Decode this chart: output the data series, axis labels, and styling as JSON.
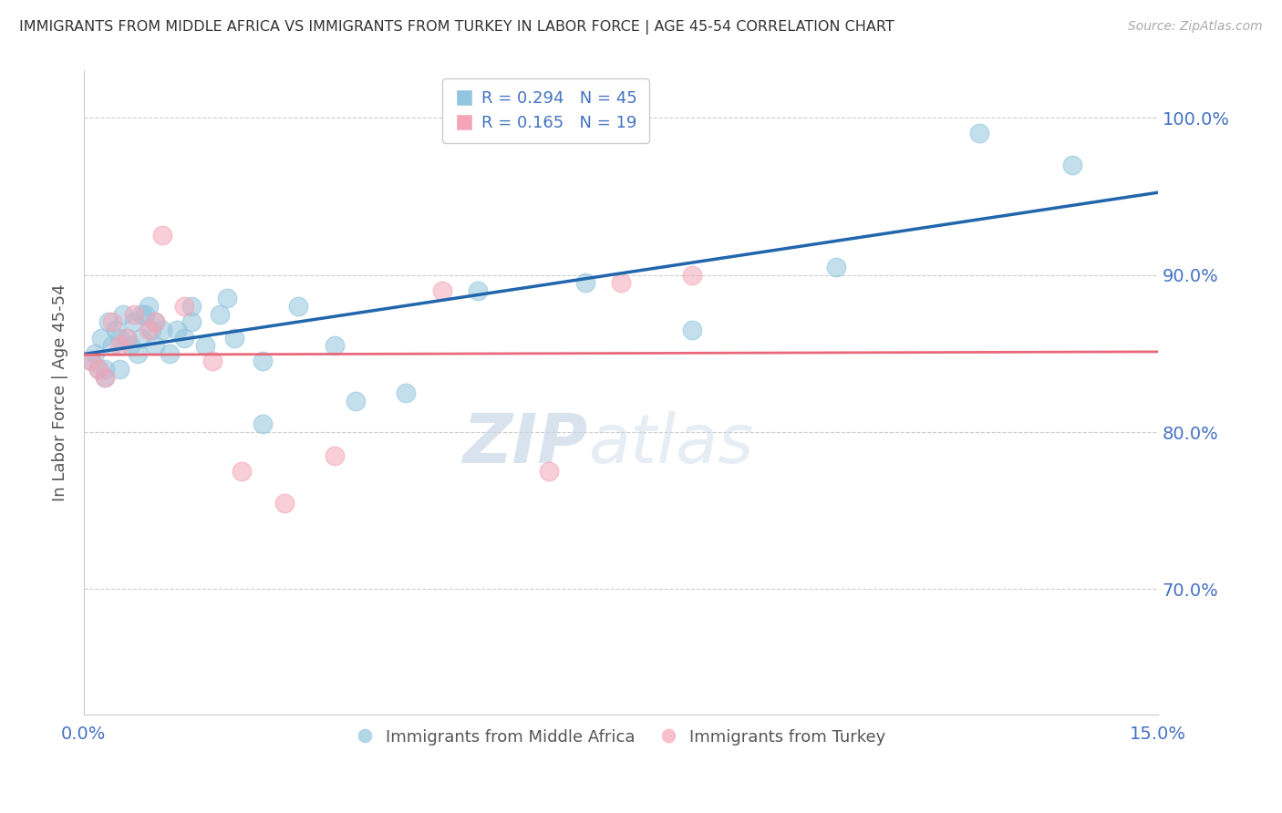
{
  "title": "IMMIGRANTS FROM MIDDLE AFRICA VS IMMIGRANTS FROM TURKEY IN LABOR FORCE | AGE 45-54 CORRELATION CHART",
  "source": "Source: ZipAtlas.com",
  "ylabel": "In Labor Force | Age 45-54",
  "xlim": [
    0.0,
    15.0
  ],
  "ylim": [
    62.0,
    103.0
  ],
  "yticks": [
    70.0,
    80.0,
    90.0,
    100.0
  ],
  "xticks": [
    0.0,
    15.0
  ],
  "legend1_r": "0.294",
  "legend1_n": "45",
  "legend2_r": "0.165",
  "legend2_n": "19",
  "legend1_label": "Immigrants from Middle Africa",
  "legend2_label": "Immigrants from Turkey",
  "color_blue": "#92c5de",
  "color_pink": "#f4a6b8",
  "color_blue_line": "#2166ac",
  "color_pink_line": "#e8687a",
  "watermark_zip": "ZIP",
  "watermark_atlas": "atlas",
  "blue_x": [
    0.1,
    0.15,
    0.2,
    0.25,
    0.3,
    0.35,
    0.4,
    0.45,
    0.5,
    0.55,
    0.6,
    0.65,
    0.7,
    0.75,
    0.8,
    0.85,
    0.9,
    0.95,
    1.0,
    1.1,
    1.2,
    1.3,
    1.4,
    1.5,
    1.7,
    1.9,
    2.1,
    2.5,
    3.0,
    3.5,
    4.5,
    5.5,
    7.0,
    8.5,
    10.5,
    12.5,
    13.8,
    0.3,
    0.5,
    0.8,
    1.0,
    1.5,
    2.0,
    2.5,
    3.8
  ],
  "blue_y": [
    84.5,
    85.0,
    84.0,
    86.0,
    83.5,
    87.0,
    85.5,
    86.5,
    84.0,
    87.5,
    86.0,
    85.5,
    87.0,
    85.0,
    86.0,
    87.5,
    88.0,
    86.5,
    87.0,
    86.5,
    85.0,
    86.5,
    86.0,
    88.0,
    85.5,
    87.5,
    86.0,
    80.5,
    88.0,
    85.5,
    82.5,
    89.0,
    89.5,
    86.5,
    90.5,
    99.0,
    97.0,
    84.0,
    86.0,
    87.5,
    85.5,
    87.0,
    88.5,
    84.5,
    82.0
  ],
  "pink_x": [
    0.1,
    0.2,
    0.3,
    0.4,
    0.5,
    0.6,
    0.7,
    0.9,
    1.1,
    1.4,
    1.8,
    2.2,
    2.8,
    3.5,
    5.0,
    6.5,
    7.5,
    8.5,
    1.0
  ],
  "pink_y": [
    84.5,
    84.0,
    83.5,
    87.0,
    85.5,
    86.0,
    87.5,
    86.5,
    92.5,
    88.0,
    84.5,
    77.5,
    75.5,
    78.5,
    89.0,
    77.5,
    89.5,
    90.0,
    87.0
  ]
}
